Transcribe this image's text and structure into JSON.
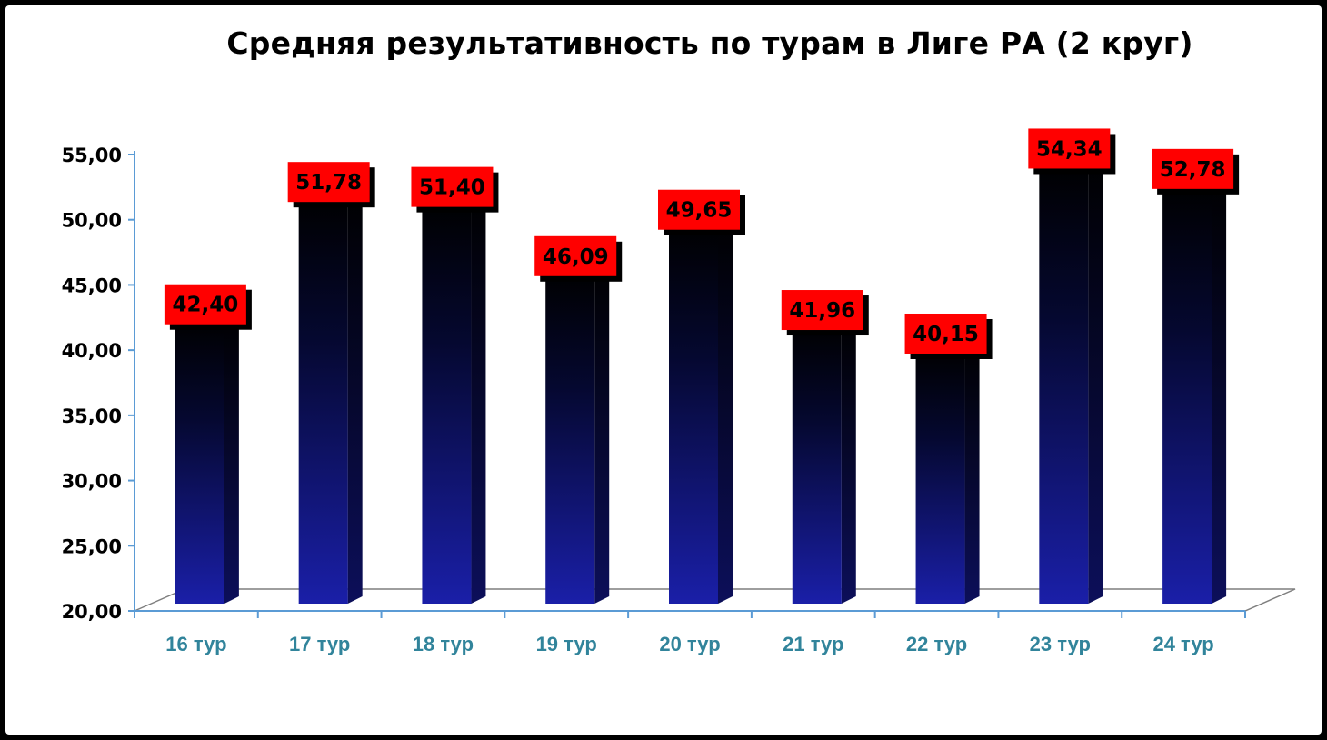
{
  "chart_data": {
    "type": "bar",
    "title": "Средняя результативность по турам в Лиге РА (2 круг)",
    "categories": [
      "16 тур",
      "17 тур",
      "18 тур",
      "19 тур",
      "20 тур",
      "21 тур",
      "22 тур",
      "23 тур",
      "24 тур"
    ],
    "values": [
      42.4,
      51.78,
      51.4,
      46.09,
      49.65,
      41.96,
      40.15,
      54.34,
      52.78
    ],
    "value_labels": [
      "42,40",
      "51,78",
      "51,40",
      "46,09",
      "49,65",
      "41,96",
      "40,15",
      "54,34",
      "52,78"
    ],
    "y_ticks": [
      "20,00",
      "25,00",
      "30,00",
      "35,00",
      "40,00",
      "45,00",
      "50,00",
      "55,00"
    ],
    "ylim": [
      20,
      55
    ],
    "xlabel": "",
    "ylabel": "",
    "grid": false,
    "legend": "none",
    "colors": {
      "bar_top": "#000000",
      "bar_bottom": "#1a1fa8",
      "label_box": "#ff0000",
      "axis": "#5b9bd5",
      "x_tick_text": "#31849b"
    }
  }
}
